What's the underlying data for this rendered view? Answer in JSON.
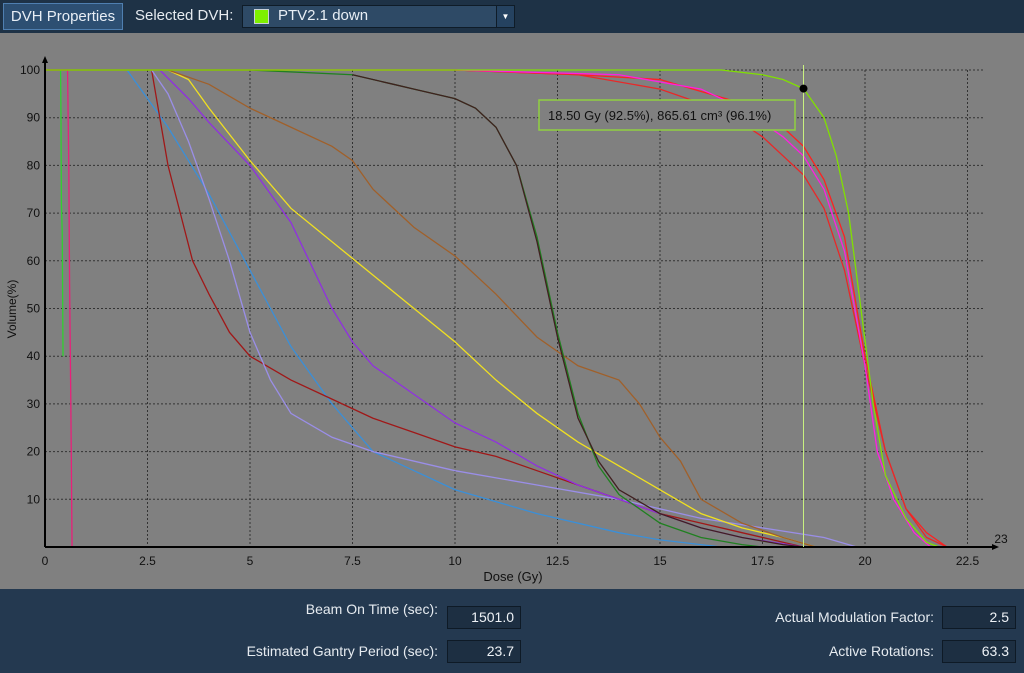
{
  "toolbar": {
    "properties_button": "DVH Properties",
    "selected_label": "Selected DVH:",
    "selected_value": "PTV2.1 down",
    "selected_color": "#7ef000",
    "dropdown_icon": "chevron-down-icon"
  },
  "chart_data": {
    "type": "line",
    "xlabel": "Dose (Gy)",
    "ylabel": "Volume(%)",
    "xlim": [
      0,
      23
    ],
    "ylim": [
      0,
      100
    ],
    "x_ticks": [
      "0",
      "2.5",
      "5",
      "7.5",
      "10",
      "12.5",
      "15",
      "17.5",
      "20",
      "22.5"
    ],
    "x_axis_end_label": "23",
    "y_ticks": [
      "10",
      "20",
      "30",
      "40",
      "50",
      "60",
      "70",
      "80",
      "90",
      "100"
    ],
    "grid": true,
    "background": "#808080",
    "cursor": {
      "dose": 18.5,
      "volume": 96.1,
      "tooltip": "18.50 Gy (92.5%), 865.61 cm³ (96.1%)"
    },
    "series": [
      {
        "color": "#e8207a",
        "points": [
          [
            0,
            100
          ],
          [
            0.55,
            100
          ],
          [
            0.58,
            80
          ],
          [
            0.6,
            55
          ],
          [
            0.63,
            30
          ],
          [
            0.66,
            0
          ]
        ]
      },
      {
        "color": "#30d030",
        "points": [
          [
            0.38,
            100
          ],
          [
            0.39,
            90
          ],
          [
            0.4,
            72
          ],
          [
            0.42,
            66
          ],
          [
            0.44,
            40
          ]
        ]
      },
      {
        "color": "#3a8fd8",
        "points": [
          [
            2,
            100
          ],
          [
            2.5,
            94
          ],
          [
            3,
            88
          ],
          [
            4,
            74
          ],
          [
            5,
            58
          ],
          [
            6,
            42
          ],
          [
            7,
            30
          ],
          [
            8,
            20
          ],
          [
            9,
            16
          ],
          [
            10,
            12
          ],
          [
            12,
            7
          ],
          [
            14,
            3
          ],
          [
            15,
            1.5
          ],
          [
            16.5,
            0
          ]
        ]
      },
      {
        "color": "#a01818",
        "points": [
          [
            2.6,
            100
          ],
          [
            2.8,
            90
          ],
          [
            3,
            80
          ],
          [
            3.3,
            70
          ],
          [
            3.6,
            60
          ],
          [
            4,
            53
          ],
          [
            4.5,
            45
          ],
          [
            5,
            40
          ],
          [
            6,
            35
          ],
          [
            7,
            31
          ],
          [
            8,
            27
          ],
          [
            9,
            24
          ],
          [
            10,
            21
          ],
          [
            11,
            19
          ],
          [
            12,
            16
          ],
          [
            13,
            13
          ],
          [
            14,
            10
          ],
          [
            15,
            7
          ],
          [
            16,
            5
          ],
          [
            17,
            3
          ],
          [
            18,
            1
          ],
          [
            18.5,
            0
          ]
        ]
      },
      {
        "color": "#9a8ee8",
        "points": [
          [
            2.6,
            100
          ],
          [
            3,
            95
          ],
          [
            3.5,
            85
          ],
          [
            4,
            73
          ],
          [
            4.5,
            60
          ],
          [
            5,
            45
          ],
          [
            5.5,
            35
          ],
          [
            6,
            28
          ],
          [
            7,
            23
          ],
          [
            8,
            20
          ],
          [
            10,
            16
          ],
          [
            12,
            13
          ],
          [
            14,
            10
          ],
          [
            16,
            6
          ],
          [
            17.5,
            4
          ],
          [
            19,
            2
          ],
          [
            19.8,
            0
          ]
        ]
      },
      {
        "color": "#9030e0",
        "points": [
          [
            2.8,
            100
          ],
          [
            3.5,
            94
          ],
          [
            4,
            89
          ],
          [
            5,
            80
          ],
          [
            6,
            68
          ],
          [
            7,
            50
          ],
          [
            7.5,
            43
          ],
          [
            8,
            38
          ],
          [
            9,
            32
          ],
          [
            10,
            26
          ],
          [
            11,
            22
          ],
          [
            12,
            17
          ],
          [
            13,
            13
          ],
          [
            14,
            10
          ],
          [
            15,
            7
          ],
          [
            16,
            4
          ],
          [
            17,
            2
          ],
          [
            18.5,
            0
          ]
        ]
      },
      {
        "color": "#f0e020",
        "points": [
          [
            3,
            100
          ],
          [
            3.5,
            98
          ],
          [
            4,
            92
          ],
          [
            5,
            81
          ],
          [
            6,
            71
          ],
          [
            7,
            64
          ],
          [
            8,
            57
          ],
          [
            9,
            50
          ],
          [
            10,
            43
          ],
          [
            11,
            35
          ],
          [
            12,
            28
          ],
          [
            13,
            22
          ],
          [
            14,
            17
          ],
          [
            15,
            12
          ],
          [
            16,
            7
          ],
          [
            17,
            4
          ],
          [
            18,
            2
          ],
          [
            18.8,
            0
          ]
        ]
      },
      {
        "color": "#a0602a",
        "points": [
          [
            3,
            100
          ],
          [
            4,
            97
          ],
          [
            5,
            92
          ],
          [
            6,
            88
          ],
          [
            7,
            84
          ],
          [
            7.5,
            81
          ],
          [
            8,
            75
          ],
          [
            9,
            67
          ],
          [
            10,
            61
          ],
          [
            11,
            53
          ],
          [
            12,
            44
          ],
          [
            13,
            38
          ],
          [
            14,
            35
          ],
          [
            14.5,
            30
          ],
          [
            15,
            23
          ],
          [
            15.5,
            18
          ],
          [
            16,
            10
          ],
          [
            17,
            5
          ],
          [
            18,
            2
          ],
          [
            18.8,
            0
          ]
        ]
      },
      {
        "color": "#208020",
        "points": [
          [
            0,
            100
          ],
          [
            5,
            100
          ],
          [
            7.5,
            99
          ],
          [
            8.5,
            97
          ],
          [
            9,
            96
          ],
          [
            10,
            94
          ],
          [
            10.5,
            92
          ],
          [
            11,
            88
          ],
          [
            11.5,
            80
          ],
          [
            12,
            65
          ],
          [
            12.5,
            45
          ],
          [
            13,
            28
          ],
          [
            13.5,
            17
          ],
          [
            14,
            11
          ],
          [
            15,
            5
          ],
          [
            16,
            2
          ],
          [
            17,
            0.5
          ],
          [
            17.5,
            0
          ]
        ]
      },
      {
        "color": "#402020",
        "points": [
          [
            7.5,
            99
          ],
          [
            8.5,
            97
          ],
          [
            9,
            96
          ],
          [
            10,
            94
          ],
          [
            10.5,
            92
          ],
          [
            11,
            88
          ],
          [
            11.5,
            80
          ],
          [
            12,
            64
          ],
          [
            12.5,
            44
          ],
          [
            13,
            27
          ],
          [
            13.5,
            18
          ],
          [
            14,
            12
          ],
          [
            15,
            7
          ],
          [
            16,
            4
          ],
          [
            17,
            2
          ],
          [
            18,
            0.5
          ],
          [
            18.5,
            0
          ]
        ]
      },
      {
        "color": "#ff2020",
        "points": [
          [
            0,
            100
          ],
          [
            10,
            100
          ],
          [
            13,
            99
          ],
          [
            15,
            98
          ],
          [
            17,
            93
          ],
          [
            18,
            88
          ],
          [
            18.5,
            84
          ],
          [
            19,
            77
          ],
          [
            19.5,
            65
          ],
          [
            20,
            40
          ],
          [
            20.5,
            20
          ],
          [
            21,
            8
          ],
          [
            21.5,
            3
          ],
          [
            22,
            0
          ]
        ]
      },
      {
        "color": "#e82828",
        "points": [
          [
            10,
            100
          ],
          [
            13,
            99
          ],
          [
            15,
            96
          ],
          [
            16,
            93
          ],
          [
            16.8,
            90
          ],
          [
            17.5,
            86
          ],
          [
            18.5,
            78
          ],
          [
            19,
            71
          ],
          [
            19.5,
            58
          ],
          [
            20,
            38
          ],
          [
            20.5,
            20
          ],
          [
            21,
            8
          ],
          [
            21.5,
            2
          ],
          [
            22,
            0
          ]
        ]
      },
      {
        "color": "#ff20e0",
        "points": [
          [
            10,
            100
          ],
          [
            14,
            99
          ],
          [
            16,
            96
          ],
          [
            17,
            92
          ],
          [
            18,
            86
          ],
          [
            18.5,
            82
          ],
          [
            19,
            75
          ],
          [
            19.5,
            62
          ],
          [
            20,
            38
          ],
          [
            20.3,
            20
          ],
          [
            20.7,
            10
          ],
          [
            21.2,
            3
          ],
          [
            21.6,
            0
          ]
        ]
      },
      {
        "color": "#80e000",
        "points": [
          [
            0,
            100
          ],
          [
            16.5,
            100
          ],
          [
            17.5,
            99
          ],
          [
            18,
            98
          ],
          [
            18.5,
            96.1
          ],
          [
            19,
            90
          ],
          [
            19.3,
            82
          ],
          [
            19.6,
            70
          ],
          [
            19.9,
            50
          ],
          [
            20.2,
            30
          ],
          [
            20.5,
            15
          ],
          [
            21,
            6
          ],
          [
            21.5,
            1
          ],
          [
            21.8,
            0
          ]
        ]
      }
    ]
  },
  "stats": {
    "beam_on_time_label": "Beam On Time (sec):",
    "beam_on_time": "1501.0",
    "gantry_period_label": "Estimated Gantry Period (sec):",
    "gantry_period": "23.7",
    "modulation_label": "Actual Modulation Factor:",
    "modulation": "2.5",
    "rotations_label": "Active Rotations:",
    "rotations": "63.3"
  }
}
